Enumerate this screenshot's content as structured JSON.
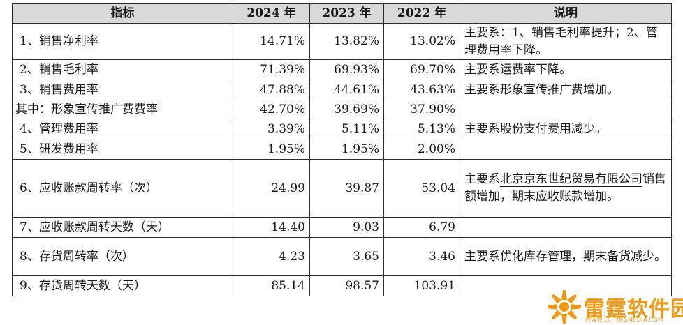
{
  "table": {
    "headers": [
      "指标",
      "2024 年",
      "2023 年",
      "2022 年",
      "说明"
    ],
    "rows": [
      {
        "name": "1、销售净利率",
        "y2024": "14.71%",
        "y2023": "13.82%",
        "y2022": "13.02%",
        "note": "主要系：1、销售毛利率提升；2、管理费用率下降。"
      },
      {
        "name": "2、销售毛利率",
        "y2024": "71.39%",
        "y2023": "69.93%",
        "y2022": "69.70%",
        "note": "主要系运费率下降。"
      },
      {
        "name": "3、销售费用率",
        "y2024": "47.88%",
        "y2023": "44.61%",
        "y2022": "43.63%",
        "note": "主要系形象宣传推广费增加。"
      },
      {
        "name": "其中：形象宣传推广费费率",
        "y2024": "42.70%",
        "y2023": "39.69%",
        "y2022": "37.90%",
        "note": ""
      },
      {
        "name": "4、管理费用率",
        "y2024": "3.39%",
        "y2023": "5.11%",
        "y2022": "5.13%",
        "note": "主要系股份支付费用减少。"
      },
      {
        "name": "5、研发费用率",
        "y2024": "1.95%",
        "y2023": "1.95%",
        "y2022": "2.00%",
        "note": ""
      },
      {
        "name": "6、应收账款周转率（次）",
        "y2024": "24.99",
        "y2023": "39.87",
        "y2022": "53.04",
        "note_pre": "主要系",
        "note_link": "北京京东世纪贸易有限公司",
        "note_post": "销售额增加，期末应收账款增加。"
      },
      {
        "name": "7、应收账款周转天数（天）",
        "y2024": "14.40",
        "y2023": "9.03",
        "y2022": "6.79",
        "note": ""
      },
      {
        "name": "8、存货周转率（次）",
        "y2024": "4.23",
        "y2023": "3.65",
        "y2022": "3.46",
        "note": "主要系优化库存管理，期末备货减少。"
      },
      {
        "name": "9、存货周转天数（天）",
        "y2024": "85.14",
        "y2023": "98.57",
        "y2022": "103.91",
        "note": ""
      }
    ]
  },
  "watermark": {
    "name": "雷霆软件园",
    "url": "WWW.LEITINGMEDIA.COM",
    "color": "#f09a18"
  }
}
